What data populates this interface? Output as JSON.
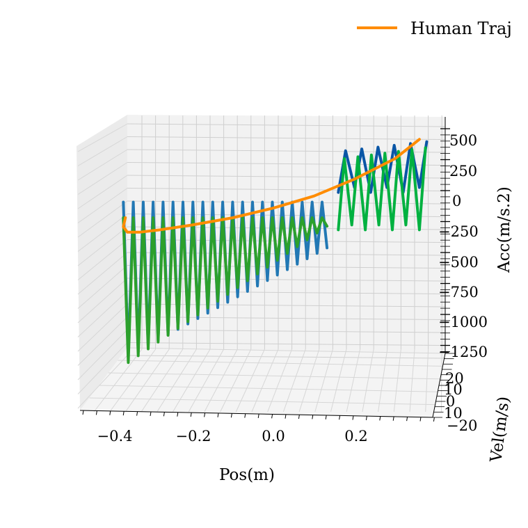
{
  "chart_data": {
    "type": "line",
    "projection": "3d",
    "title": "",
    "xlabel": "Pos(m)",
    "ylabel": "Vel(m/s)",
    "zlabel": "Acc(m/s.2)",
    "xticks": [
      "−0.4",
      "−0.2",
      "0.0",
      "0.2"
    ],
    "yticks": [
      "−20",
      "10",
      "0",
      "10",
      "20"
    ],
    "zticks": [
      "500",
      "250",
      "0",
      "−250",
      "−500",
      "−750",
      "−1000",
      "−1250"
    ],
    "xlim": [
      -0.5,
      0.4
    ],
    "zlim": [
      -1250,
      600
    ],
    "grid": true,
    "legend": {
      "placement": "top-right",
      "entries": [
        {
          "name": "Human Traj",
          "color": "#ff8c00"
        }
      ]
    },
    "series": [
      {
        "name": "Human Traj",
        "color": "#ff8c00",
        "x": [
          -0.365,
          -0.37,
          -0.36,
          -0.33,
          -0.28,
          -0.2,
          -0.1,
          0.0,
          0.1,
          0.2,
          0.3,
          0.36
        ],
        "z": [
          -150,
          -225,
          -270,
          -270,
          -250,
          -210,
          -150,
          -70,
          30,
          170,
          340,
          500
        ]
      },
      {
        "color": "#2278b4",
        "x_range": [
          -0.37,
          0.12
        ],
        "z_top": -20,
        "z_bottom_start": -1300,
        "z_bottom_end": -400
      },
      {
        "color": "#2ca02c",
        "x_range": [
          -0.37,
          0.12
        ],
        "z_top": -150,
        "z_bottom_start": -1350,
        "z_bottom_end": -220
      },
      {
        "color": "#0a56a6",
        "x_range": [
          0.16,
          0.36
        ],
        "z_top": 480,
        "z_bottom": 60
      },
      {
        "color": "#00b140",
        "x_range": [
          0.16,
          0.36
        ],
        "z_top": 430,
        "z_bottom": -250
      }
    ]
  }
}
